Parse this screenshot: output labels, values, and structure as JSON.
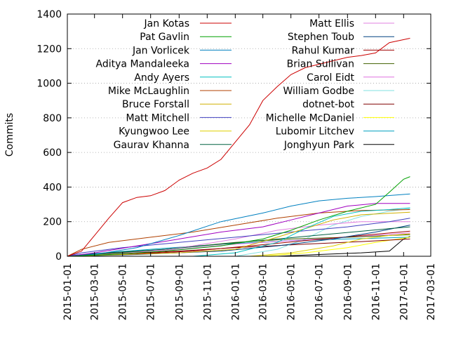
{
  "chart_data": {
    "type": "line",
    "title": "",
    "xlabel": "",
    "ylabel": "Commits",
    "xlim": [
      "2015-01-01",
      "2017-03-01"
    ],
    "ylim": [
      0,
      1400
    ],
    "x_ticks": [
      "2015-01-01",
      "2015-03-01",
      "2015-05-01",
      "2015-07-01",
      "2015-09-01",
      "2015-11-01",
      "2016-01-01",
      "2016-03-01",
      "2016-05-01",
      "2016-07-01",
      "2016-09-01",
      "2016-11-01",
      "2017-01-01",
      "2017-03-01"
    ],
    "y_ticks": [
      0,
      200,
      400,
      600,
      800,
      1000,
      1200,
      1400
    ],
    "grid": true,
    "legend_placement": "top, two columns",
    "series": [
      {
        "name": "Jan Kotas",
        "color": "#cc0000",
        "points": [
          [
            "2015-01-01",
            0
          ],
          [
            "2015-02-01",
            30
          ],
          [
            "2015-03-01",
            120
          ],
          [
            "2015-04-01",
            220
          ],
          [
            "2015-05-01",
            310
          ],
          [
            "2015-06-01",
            340
          ],
          [
            "2015-07-01",
            350
          ],
          [
            "2015-08-01",
            380
          ],
          [
            "2015-09-01",
            440
          ],
          [
            "2015-10-01",
            480
          ],
          [
            "2015-11-01",
            510
          ],
          [
            "2015-12-01",
            560
          ],
          [
            "2016-01-01",
            660
          ],
          [
            "2016-02-01",
            760
          ],
          [
            "2016-03-01",
            900
          ],
          [
            "2016-04-01",
            980
          ],
          [
            "2016-05-01",
            1050
          ],
          [
            "2016-06-01",
            1090
          ],
          [
            "2016-07-01",
            1110
          ],
          [
            "2016-08-01",
            1130
          ],
          [
            "2016-09-01",
            1150
          ],
          [
            "2016-10-01",
            1160
          ],
          [
            "2016-11-01",
            1175
          ],
          [
            "2016-12-01",
            1235
          ],
          [
            "2017-01-15",
            1260
          ]
        ]
      },
      {
        "name": "Pat Gavlin",
        "color": "#00a000",
        "points": [
          [
            "2015-01-01",
            0
          ],
          [
            "2015-04-01",
            10
          ],
          [
            "2015-08-01",
            30
          ],
          [
            "2015-12-01",
            60
          ],
          [
            "2016-03-01",
            100
          ],
          [
            "2016-05-01",
            150
          ],
          [
            "2016-07-01",
            210
          ],
          [
            "2016-09-01",
            260
          ],
          [
            "2016-11-01",
            300
          ],
          [
            "2016-12-01",
            370
          ],
          [
            "2017-01-01",
            445
          ],
          [
            "2017-01-15",
            460
          ]
        ]
      },
      {
        "name": "Jan Vorlicek",
        "color": "#0080c0",
        "points": [
          [
            "2015-01-01",
            0
          ],
          [
            "2015-03-01",
            10
          ],
          [
            "2015-06-01",
            50
          ],
          [
            "2015-09-01",
            120
          ],
          [
            "2015-12-01",
            200
          ],
          [
            "2016-03-01",
            250
          ],
          [
            "2016-05-01",
            290
          ],
          [
            "2016-07-01",
            320
          ],
          [
            "2016-09-01",
            335
          ],
          [
            "2016-11-01",
            345
          ],
          [
            "2017-01-15",
            360
          ]
        ]
      },
      {
        "name": "Aditya Mandaleeka",
        "color": "#a000c0",
        "points": [
          [
            "2015-01-01",
            0
          ],
          [
            "2015-03-01",
            20
          ],
          [
            "2015-06-01",
            60
          ],
          [
            "2015-09-01",
            100
          ],
          [
            "2015-12-01",
            140
          ],
          [
            "2016-03-01",
            170
          ],
          [
            "2016-05-01",
            210
          ],
          [
            "2016-07-01",
            250
          ],
          [
            "2016-09-01",
            290
          ],
          [
            "2016-11-01",
            305
          ],
          [
            "2017-01-15",
            305
          ]
        ]
      },
      {
        "name": "Andy Ayers",
        "color": "#00c0c0",
        "points": [
          [
            "2015-01-01",
            0
          ],
          [
            "2015-10-01",
            0
          ],
          [
            "2016-01-01",
            20
          ],
          [
            "2016-04-01",
            80
          ],
          [
            "2016-06-01",
            160
          ],
          [
            "2016-08-01",
            230
          ],
          [
            "2016-10-01",
            260
          ],
          [
            "2016-12-01",
            270
          ],
          [
            "2017-01-15",
            280
          ]
        ]
      },
      {
        "name": "Mike McLaughlin",
        "color": "#b04000",
        "points": [
          [
            "2015-01-01",
            0
          ],
          [
            "2015-02-01",
            40
          ],
          [
            "2015-04-01",
            80
          ],
          [
            "2015-07-01",
            110
          ],
          [
            "2015-10-01",
            140
          ],
          [
            "2016-01-01",
            180
          ],
          [
            "2016-04-01",
            220
          ],
          [
            "2016-07-01",
            250
          ],
          [
            "2016-10-01",
            265
          ],
          [
            "2017-01-15",
            270
          ]
        ]
      },
      {
        "name": "Bruce Forstall",
        "color": "#d0b000",
        "points": [
          [
            "2015-01-01",
            0
          ],
          [
            "2015-03-01",
            5
          ],
          [
            "2015-09-01",
            20
          ],
          [
            "2016-01-01",
            40
          ],
          [
            "2016-04-01",
            110
          ],
          [
            "2016-06-01",
            160
          ],
          [
            "2016-08-01",
            210
          ],
          [
            "2016-10-01",
            240
          ],
          [
            "2017-01-15",
            255
          ]
        ]
      },
      {
        "name": "Matt Mitchell",
        "color": "#4040c0",
        "points": [
          [
            "2015-01-01",
            0
          ],
          [
            "2015-02-01",
            20
          ],
          [
            "2015-05-01",
            50
          ],
          [
            "2015-09-01",
            80
          ],
          [
            "2016-01-01",
            110
          ],
          [
            "2016-05-01",
            140
          ],
          [
            "2016-09-01",
            170
          ],
          [
            "2016-12-01",
            200
          ],
          [
            "2017-01-15",
            220
          ]
        ]
      },
      {
        "name": "Kyungwoo Lee",
        "color": "#e0d000",
        "points": [
          [
            "2015-01-01",
            0
          ],
          [
            "2016-02-01",
            0
          ],
          [
            "2016-05-01",
            20
          ],
          [
            "2016-08-01",
            60
          ],
          [
            "2016-10-01",
            100
          ],
          [
            "2016-12-01",
            120
          ],
          [
            "2017-01-15",
            130
          ]
        ]
      },
      {
        "name": "Gaurav Khanna",
        "color": "#006040",
        "points": [
          [
            "2015-01-01",
            0
          ],
          [
            "2015-04-01",
            20
          ],
          [
            "2015-08-01",
            40
          ],
          [
            "2015-12-01",
            70
          ],
          [
            "2016-04-01",
            100
          ],
          [
            "2016-08-01",
            130
          ],
          [
            "2016-12-01",
            160
          ],
          [
            "2017-01-15",
            170
          ]
        ]
      },
      {
        "name": "Matt Ellis",
        "color": "#e080e0",
        "points": [
          [
            "2015-01-01",
            0
          ],
          [
            "2015-06-01",
            20
          ],
          [
            "2015-10-01",
            60
          ],
          [
            "2016-01-01",
            100
          ],
          [
            "2016-04-01",
            150
          ],
          [
            "2016-07-01",
            180
          ],
          [
            "2016-10-01",
            200
          ],
          [
            "2017-01-15",
            200
          ]
        ]
      },
      {
        "name": "Stephen Toub",
        "color": "#004080",
        "points": [
          [
            "2015-01-01",
            0
          ],
          [
            "2015-06-01",
            10
          ],
          [
            "2015-12-01",
            30
          ],
          [
            "2016-04-01",
            60
          ],
          [
            "2016-08-01",
            100
          ],
          [
            "2016-11-01",
            140
          ],
          [
            "2017-01-15",
            180
          ]
        ]
      },
      {
        "name": "Rahul Kumar",
        "color": "#a00000",
        "points": [
          [
            "2015-01-01",
            0
          ],
          [
            "2015-05-01",
            10
          ],
          [
            "2015-10-01",
            30
          ],
          [
            "2016-02-01",
            60
          ],
          [
            "2016-06-01",
            90
          ],
          [
            "2016-10-01",
            120
          ],
          [
            "2017-01-15",
            145
          ]
        ]
      },
      {
        "name": "Brian Sullivan",
        "color": "#406000",
        "points": [
          [
            "2015-01-01",
            0
          ],
          [
            "2015-03-01",
            10
          ],
          [
            "2015-08-01",
            40
          ],
          [
            "2016-01-01",
            80
          ],
          [
            "2016-05-01",
            100
          ],
          [
            "2016-09-01",
            110
          ],
          [
            "2017-01-15",
            125
          ]
        ]
      },
      {
        "name": "Carol Eidt",
        "color": "#e070e0",
        "points": [
          [
            "2015-01-01",
            0
          ],
          [
            "2015-05-01",
            20
          ],
          [
            "2015-09-01",
            40
          ],
          [
            "2016-01-01",
            70
          ],
          [
            "2016-05-01",
            90
          ],
          [
            "2016-09-01",
            110
          ],
          [
            "2017-01-15",
            135
          ]
        ]
      },
      {
        "name": "William Godbe",
        "color": "#80e0e0",
        "points": [
          [
            "2015-01-01",
            0
          ],
          [
            "2016-01-01",
            0
          ],
          [
            "2016-04-01",
            40
          ],
          [
            "2016-06-01",
            100
          ],
          [
            "2016-08-01",
            180
          ],
          [
            "2016-10-01",
            230
          ],
          [
            "2016-12-01",
            260
          ],
          [
            "2017-01-15",
            275
          ]
        ]
      },
      {
        "name": "dotnet-bot",
        "color": "#800000",
        "points": [
          [
            "2015-01-01",
            0
          ],
          [
            "2015-04-01",
            10
          ],
          [
            "2015-09-01",
            30
          ],
          [
            "2016-01-01",
            50
          ],
          [
            "2016-06-01",
            70
          ],
          [
            "2016-10-01",
            85
          ],
          [
            "2017-01-15",
            100
          ]
        ]
      },
      {
        "name": "Michelle McDaniel",
        "color": "#ffff00",
        "points": [
          [
            "2015-01-01",
            0
          ],
          [
            "2016-03-01",
            0
          ],
          [
            "2016-06-01",
            20
          ],
          [
            "2016-09-01",
            50
          ],
          [
            "2016-11-01",
            80
          ],
          [
            "2017-01-15",
            110
          ]
        ]
      },
      {
        "name": "Lubomir Litchev",
        "color": "#00a0c0",
        "points": [
          [
            "2015-01-01",
            0
          ],
          [
            "2015-02-01",
            10
          ],
          [
            "2015-07-01",
            40
          ],
          [
            "2015-12-01",
            70
          ],
          [
            "2016-05-01",
            90
          ],
          [
            "2016-09-01",
            100
          ],
          [
            "2017-01-15",
            110
          ]
        ]
      },
      {
        "name": "Jonghyun Park",
        "color": "#000000",
        "points": [
          [
            "2015-01-01",
            0
          ],
          [
            "2016-04-01",
            0
          ],
          [
            "2016-07-01",
            10
          ],
          [
            "2016-10-01",
            20
          ],
          [
            "2016-12-01",
            30
          ],
          [
            "2017-01-01",
            100
          ],
          [
            "2017-01-15",
            115
          ]
        ]
      }
    ]
  }
}
